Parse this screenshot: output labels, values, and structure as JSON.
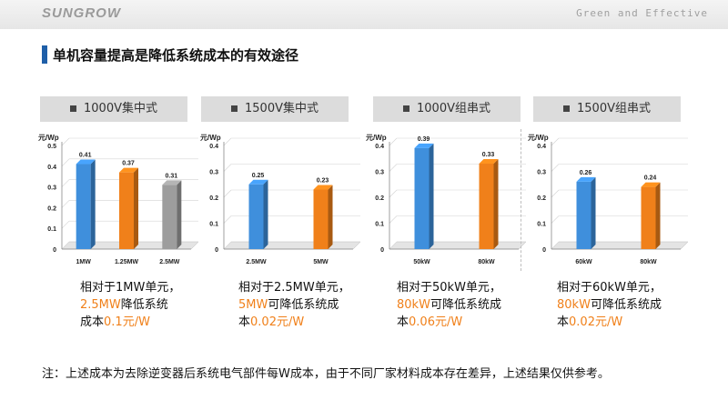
{
  "header": {
    "logo": "SUNGROW",
    "tagline": "Green and Effective"
  },
  "title": "单机容量提高是降低系统成本的有效途径",
  "note": "注：上述成本为去除逆变器后系统电气部件每W成本，由于不同厂家材料成本存在差异，上述结果仅供参考。",
  "colors": {
    "blue": "#3f8fdc",
    "orange": "#f0801a",
    "gray": "#9d9d9d"
  },
  "panels": [
    {
      "title": "1000V集中式",
      "desc": {
        "line1": "相对于1MW单元，",
        "hl1": "2.5MW",
        "rest2": "降低系统",
        "line3a": "成本",
        "hl3": "0.1元/W"
      }
    },
    {
      "title": "1500V集中式",
      "desc": {
        "line1": "相对于2.5MW单元，",
        "hl1": "5MW",
        "rest2": "可降低系统成",
        "line3a": "本",
        "hl3": "0.02元/W"
      }
    },
    {
      "title": "1000V组串式",
      "desc": {
        "line1": "相对于50kW单元，",
        "hl1": "80kW",
        "rest2": "可降低系统成",
        "line3a": "本",
        "hl3": "0.06元/W"
      }
    },
    {
      "title": "1500V组串式",
      "desc": {
        "line1": "相对于60kW单元，",
        "hl1": "80kW",
        "rest2": "可降低系统成",
        "line3a": "本",
        "hl3": "0.02元/W"
      }
    }
  ],
  "chart_data": [
    {
      "type": "bar",
      "ylabel": "元/Wp",
      "ylim": [
        0,
        0.5
      ],
      "yticks": [
        0,
        0.1,
        0.2,
        0.3,
        0.4,
        0.5
      ],
      "categories": [
        "1MW",
        "1.25MW",
        "2.5MW"
      ],
      "values": [
        0.41,
        0.37,
        0.31
      ],
      "colors": [
        "blue",
        "orange",
        "gray"
      ]
    },
    {
      "type": "bar",
      "ylabel": "元/Wp",
      "ylim": [
        0,
        0.4
      ],
      "yticks": [
        0,
        0.1,
        0.2,
        0.3,
        0.4
      ],
      "categories": [
        "2.5MW",
        "5MW"
      ],
      "values": [
        0.25,
        0.23
      ],
      "colors": [
        "blue",
        "orange"
      ]
    },
    {
      "type": "bar",
      "ylabel": "元/Wp",
      "ylim": [
        0,
        0.4
      ],
      "yticks": [
        0,
        0.1,
        0.2,
        0.3,
        0.4
      ],
      "categories": [
        "50kW",
        "80kW"
      ],
      "values": [
        0.39,
        0.33
      ],
      "colors": [
        "blue",
        "orange"
      ]
    },
    {
      "type": "bar",
      "ylabel": "元/Wp",
      "ylim": [
        0,
        0.4
      ],
      "yticks": [
        0,
        0.1,
        0.2,
        0.3,
        0.4
      ],
      "categories": [
        "60kW",
        "80kW"
      ],
      "values": [
        0.26,
        0.24
      ],
      "colors": [
        "blue",
        "orange"
      ]
    }
  ]
}
